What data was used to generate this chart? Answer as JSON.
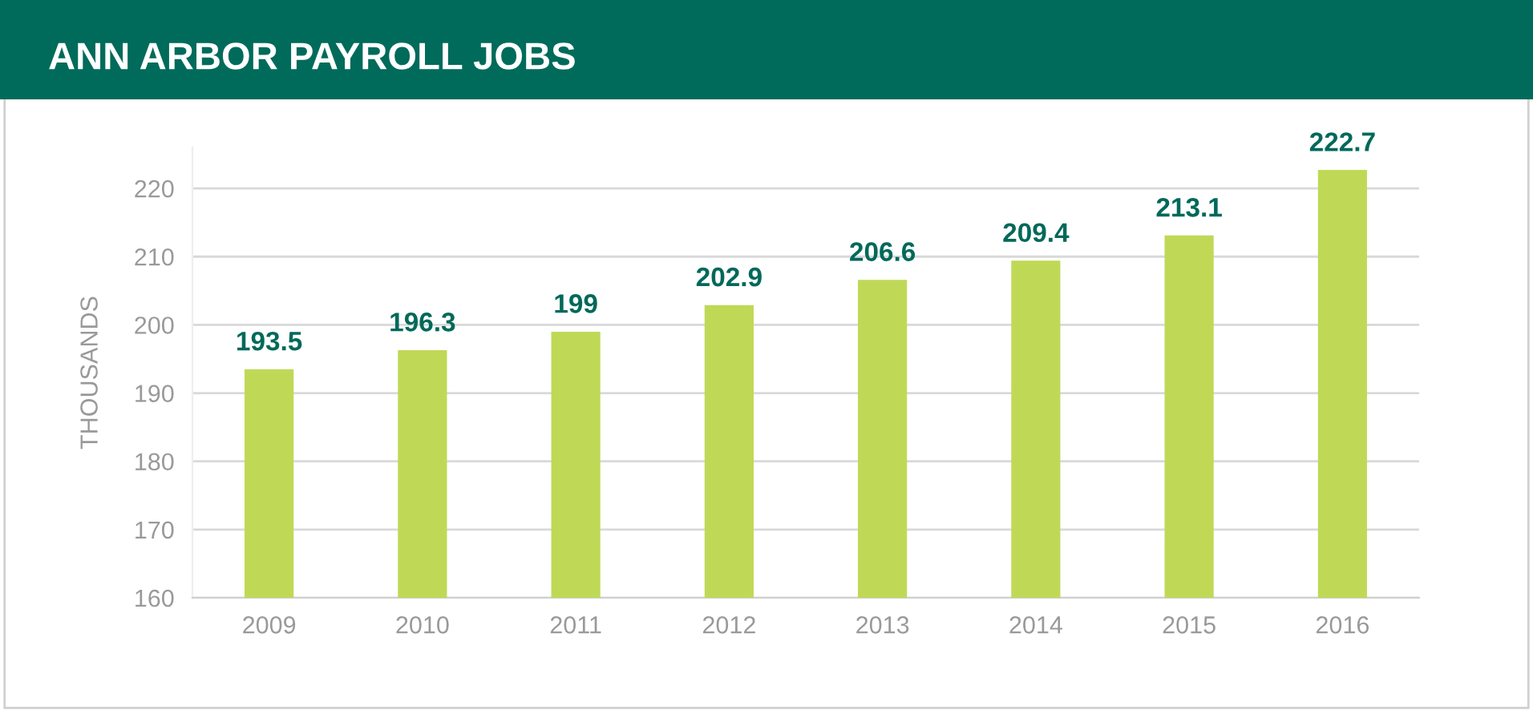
{
  "chart_data": {
    "type": "bar",
    "title": "ANN ARBOR PAYROLL JOBS",
    "ylabel": "THOUSANDS",
    "categories": [
      "2009",
      "2010",
      "2011",
      "2012",
      "2013",
      "2014",
      "2015",
      "2016"
    ],
    "values": [
      193.5,
      196.3,
      199,
      202.9,
      206.6,
      209.4,
      213.1,
      222.7
    ],
    "color": "#bfd957",
    "ylim": [
      160,
      226
    ],
    "yticks": [
      160,
      170,
      180,
      190,
      200,
      210,
      220
    ],
    "grid": "y",
    "data_labels": true
  }
}
